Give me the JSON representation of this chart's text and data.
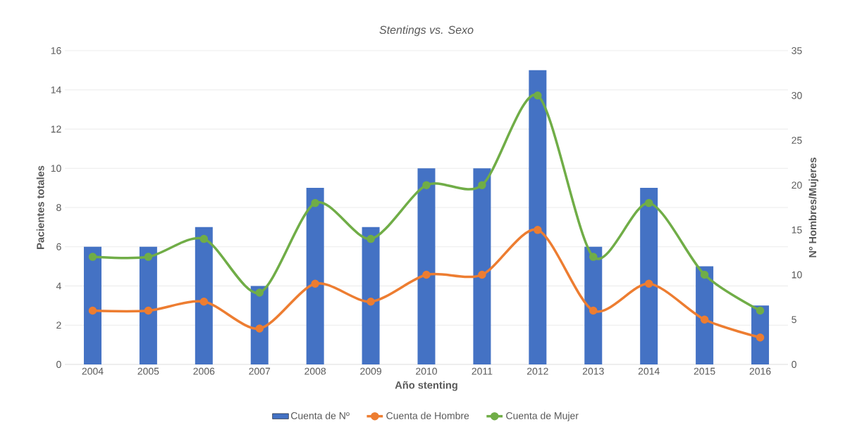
{
  "chart_data": {
    "type": "bar",
    "title": "Stentings vs. Sexo",
    "xlabel": "Año stenting",
    "ylabel": "Pacientes totales",
    "y2label": "Nº Hombres/Mujeres",
    "categories": [
      "2004",
      "2005",
      "2006",
      "2007",
      "2008",
      "2009",
      "2010",
      "2011",
      "2012",
      "2013",
      "2014",
      "2015",
      "2016"
    ],
    "series": [
      {
        "name": "Cuenta de Nº",
        "color": "#4472c4",
        "values": [
          6,
          6,
          7,
          4,
          9,
          7,
          10,
          10,
          15,
          6,
          9,
          5,
          3
        ]
      },
      {
        "name": "Cuenta de Hombre",
        "type": "line",
        "axis": "y2",
        "color": "#ed7d31",
        "values": [
          6,
          6,
          7,
          4,
          9,
          7,
          10,
          10,
          15,
          6,
          9,
          5,
          3
        ]
      },
      {
        "name": "Cuenta de Mujer",
        "type": "line",
        "axis": "y2",
        "color": "#70ad47",
        "values": [
          12,
          12,
          14,
          8,
          18,
          14,
          20,
          20,
          30,
          12,
          18,
          10,
          6
        ]
      }
    ],
    "ylim": [
      0,
      16
    ],
    "yticks": [
      0,
      2,
      4,
      6,
      8,
      10,
      12,
      14,
      16
    ],
    "y2lim": [
      0,
      35
    ],
    "y2ticks": [
      0,
      5,
      10,
      15,
      20,
      25,
      30,
      35
    ],
    "grid": "y",
    "legend": "bottom",
    "marker": "circle"
  }
}
